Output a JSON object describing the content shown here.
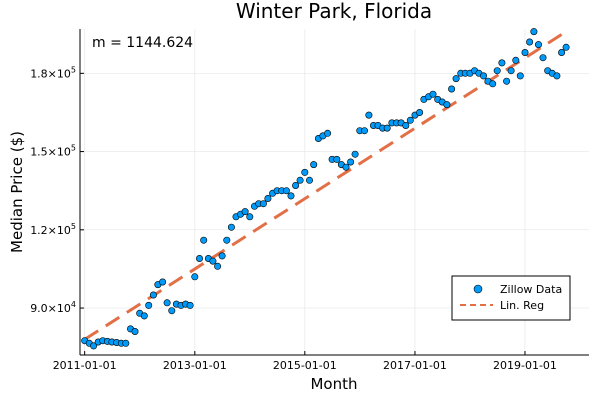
{
  "chart_data": {
    "type": "scatter",
    "title": "Winter Park, Florida",
    "xlabel": "Month",
    "ylabel": "Median Price ($)",
    "annotation": "m = 1144.624",
    "grid": true,
    "legend_position": "bottom-right",
    "xlim": [
      "2010-12-01",
      "2020-03-01"
    ],
    "ylim": [
      72000,
      197000
    ],
    "x_ticks": [
      {
        "value": "2011-01-01",
        "label": "2011-01-01"
      },
      {
        "value": "2013-01-01",
        "label": "2013-01-01"
      },
      {
        "value": "2015-01-01",
        "label": "2015-01-01"
      },
      {
        "value": "2017-01-01",
        "label": "2017-01-01"
      },
      {
        "value": "2019-01-01",
        "label": "2019-01-01"
      }
    ],
    "y_ticks": [
      {
        "value": 90000,
        "base": "9.0×10",
        "exp": "4"
      },
      {
        "value": 120000,
        "base": "1.2×10",
        "exp": "5"
      },
      {
        "value": 150000,
        "base": "1.5×10",
        "exp": "5"
      },
      {
        "value": 180000,
        "base": "1.8×10",
        "exp": "5"
      }
    ],
    "series": [
      {
        "name": "Zillow Data",
        "type": "scatter",
        "color": "#009af9",
        "x": [
          "2011-01-01",
          "2011-02-01",
          "2011-03-01",
          "2011-04-01",
          "2011-05-01",
          "2011-06-01",
          "2011-07-01",
          "2011-08-01",
          "2011-09-01",
          "2011-10-01",
          "2011-11-01",
          "2011-12-01",
          "2012-01-01",
          "2012-02-01",
          "2012-03-01",
          "2012-04-01",
          "2012-05-01",
          "2012-06-01",
          "2012-07-01",
          "2012-08-01",
          "2012-09-01",
          "2012-10-01",
          "2012-11-01",
          "2012-12-01",
          "2013-01-01",
          "2013-02-01",
          "2013-03-01",
          "2013-04-01",
          "2013-05-01",
          "2013-06-01",
          "2013-07-01",
          "2013-08-01",
          "2013-09-01",
          "2013-10-01",
          "2013-11-01",
          "2013-12-01",
          "2014-01-01",
          "2014-02-01",
          "2014-03-01",
          "2014-04-01",
          "2014-05-01",
          "2014-06-01",
          "2014-07-01",
          "2014-08-01",
          "2014-09-01",
          "2014-10-01",
          "2014-11-01",
          "2014-12-01",
          "2015-01-01",
          "2015-02-01",
          "2015-03-01",
          "2015-04-01",
          "2015-05-01",
          "2015-06-01",
          "2015-07-01",
          "2015-08-01",
          "2015-09-01",
          "2015-10-01",
          "2015-11-01",
          "2015-12-01",
          "2016-01-01",
          "2016-02-01",
          "2016-03-01",
          "2016-04-01",
          "2016-05-01",
          "2016-06-01",
          "2016-07-01",
          "2016-08-01",
          "2016-09-01",
          "2016-10-01",
          "2016-11-01",
          "2016-12-01",
          "2017-01-01",
          "2017-02-01",
          "2017-03-01",
          "2017-04-01",
          "2017-05-01",
          "2017-06-01",
          "2017-07-01",
          "2017-08-01",
          "2017-09-01",
          "2017-10-01",
          "2017-11-01",
          "2017-12-01",
          "2018-01-01",
          "2018-02-01",
          "2018-03-01",
          "2018-04-01",
          "2018-05-01",
          "2018-06-01",
          "2018-07-01",
          "2018-08-01",
          "2018-09-01",
          "2018-10-01",
          "2018-11-01",
          "2018-12-01",
          "2019-01-01",
          "2019-02-01",
          "2019-03-01",
          "2019-04-01",
          "2019-05-01",
          "2019-06-01",
          "2019-07-01",
          "2019-08-01",
          "2019-09-01",
          "2019-10-01"
        ],
        "y": [
          77500,
          76500,
          75500,
          77000,
          77500,
          77200,
          77000,
          76800,
          76500,
          76500,
          82000,
          81000,
          88000,
          87000,
          91000,
          95000,
          99000,
          100000,
          92000,
          89000,
          91500,
          91000,
          91500,
          91000,
          102000,
          109000,
          116000,
          109000,
          108000,
          106000,
          110000,
          116000,
          121000,
          125000,
          126000,
          127000,
          125000,
          129000,
          130000,
          130000,
          132000,
          134000,
          135000,
          135000,
          135000,
          133000,
          137000,
          139000,
          142000,
          139000,
          145000,
          155000,
          156000,
          157000,
          147000,
          147000,
          145000,
          144000,
          146000,
          149000,
          158000,
          158000,
          164000,
          160000,
          160000,
          159000,
          159000,
          161000,
          161000,
          161000,
          160000,
          162000,
          164000,
          165000,
          170000,
          171000,
          172000,
          170000,
          169000,
          168000,
          174000,
          178000,
          180000,
          180000,
          180000,
          181000,
          180000,
          179000,
          177000,
          176000,
          181000,
          184000,
          177000,
          181000,
          185000,
          179000,
          188000,
          192000,
          196000,
          191000,
          186000,
          181000,
          180000,
          179000,
          188000,
          190000
        ]
      },
      {
        "name": "Lin. Reg",
        "type": "line",
        "style": "dashed",
        "color": "#e26f46",
        "x": [
          "2011-01-01",
          "2019-10-01"
        ],
        "y": [
          78000,
          196000
        ]
      }
    ]
  }
}
